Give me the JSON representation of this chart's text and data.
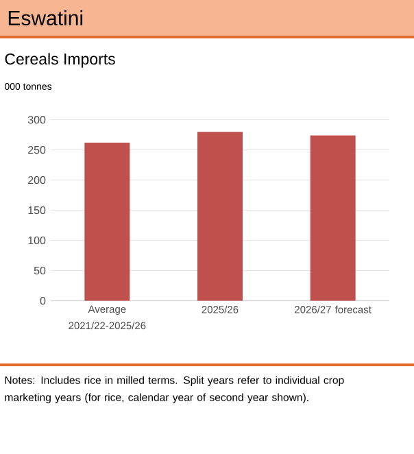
{
  "chart_data": {
    "type": "bar",
    "title": "Eswatini",
    "subtitle": "Cereals Imports",
    "ylabel": "000 tonnes",
    "categories": [
      "Average 2021/22-2025/26",
      "2025/26",
      "2026/27 forecast"
    ],
    "values": [
      262,
      280,
      274
    ],
    "color": "#c0504d",
    "ylim": [
      0,
      300
    ],
    "yticks": [
      0,
      50,
      100,
      150,
      200,
      250,
      300
    ],
    "grid": "y",
    "annotations": [
      "Notes: Includes rice in milled terms. Split years refer to individual crop marketing years (for rice, calendar year of second year shown)."
    ]
  }
}
